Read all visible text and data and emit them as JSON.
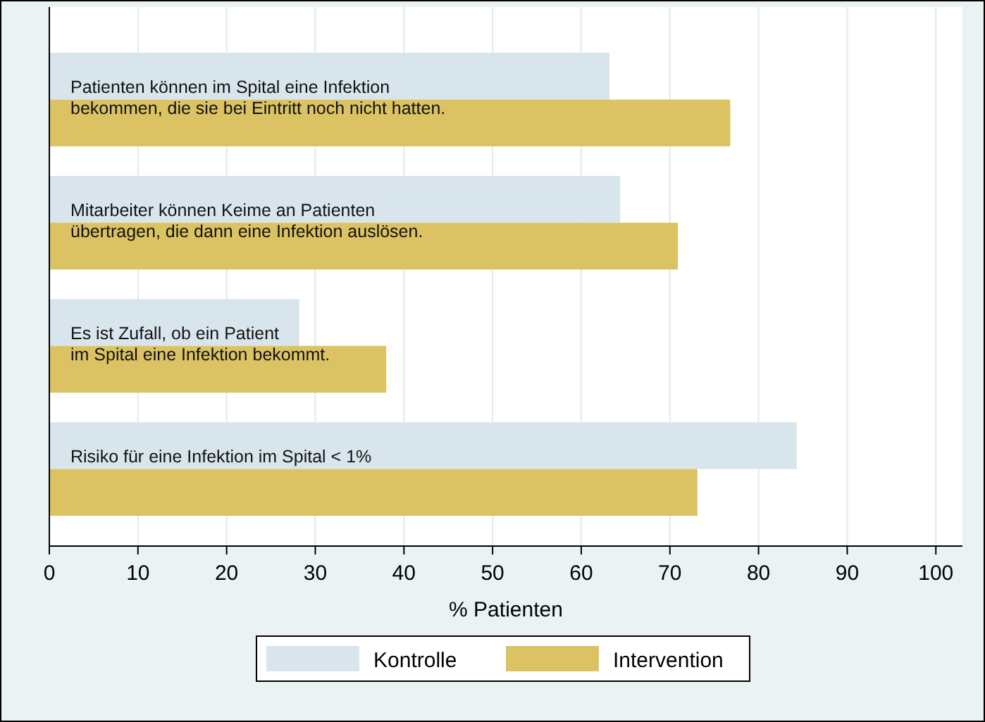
{
  "chart_data": {
    "type": "bar",
    "orientation": "horizontal",
    "xlabel": "% Patienten",
    "categories": [
      "Patienten können im Spital eine Infektion\nbekommen, die sie bei Eintritt noch nicht hatten.",
      "Mitarbeiter können Keime an Patienten\nübertragen, die dann eine Infektion auslösen.",
      "Es ist Zufall, ob ein Patient\nim Spital eine Infektion bekommt.",
      "Risiko für eine Infektion im Spital < 1%"
    ],
    "series": [
      {
        "name": "Kontrolle",
        "color": "#d9e5ec",
        "values": [
          63.2,
          64.4,
          28.2,
          84.3
        ]
      },
      {
        "name": "Intervention",
        "color": "#dbc263",
        "values": [
          76.8,
          70.9,
          38.0,
          73.1
        ]
      }
    ],
    "xlim": [
      0,
      103
    ],
    "xticks": [
      0,
      10,
      20,
      30,
      40,
      50,
      60,
      70,
      80,
      90,
      100
    ],
    "grid": "x",
    "legend": "bottom"
  }
}
